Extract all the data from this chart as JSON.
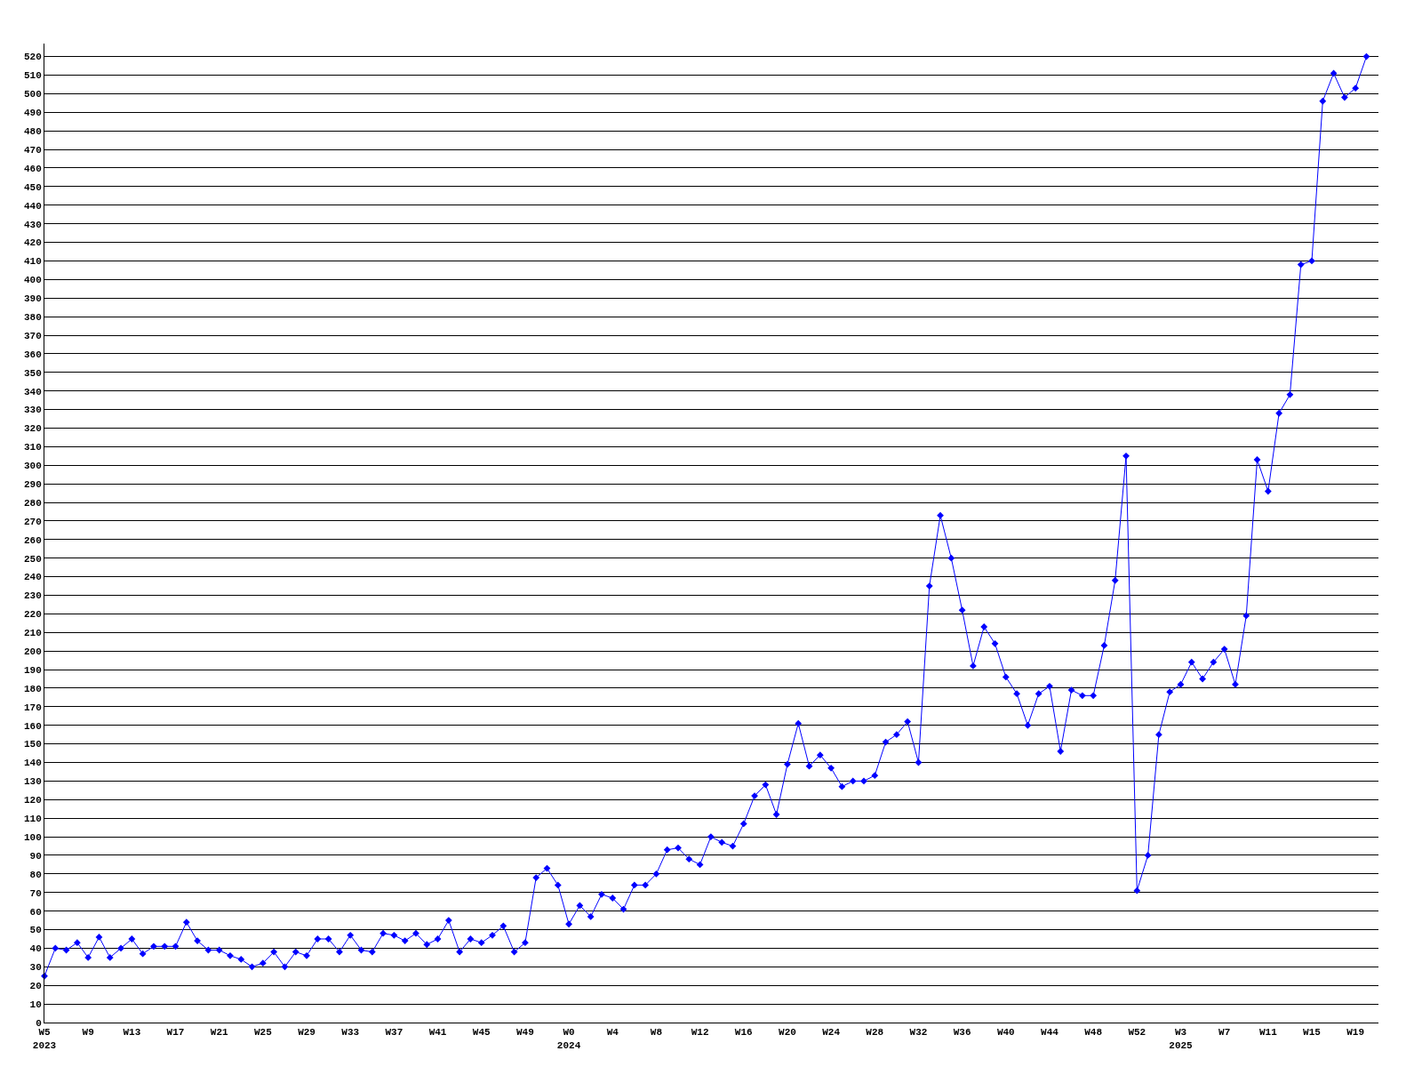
{
  "chart_data": {
    "type": "line",
    "categories": [
      "W5\n2023",
      null,
      null,
      null,
      "W9",
      null,
      null,
      null,
      "W13",
      null,
      null,
      null,
      "W17",
      null,
      null,
      null,
      "W21",
      null,
      null,
      null,
      "W25",
      null,
      null,
      null,
      "W29",
      null,
      null,
      null,
      "W33",
      null,
      null,
      null,
      "W37",
      null,
      null,
      null,
      "W41",
      null,
      null,
      null,
      "W45",
      null,
      null,
      null,
      "W49",
      null,
      null,
      null,
      "W0\n2024",
      null,
      null,
      null,
      "W4",
      null,
      null,
      null,
      "W8",
      null,
      null,
      null,
      "W12",
      null,
      null,
      null,
      "W16",
      null,
      null,
      null,
      "W20",
      null,
      null,
      null,
      "W24",
      null,
      null,
      null,
      "W28",
      null,
      null,
      null,
      "W32",
      null,
      null,
      null,
      "W36",
      null,
      null,
      null,
      "W40",
      null,
      null,
      null,
      "W44",
      null,
      null,
      null,
      "W48",
      null,
      null,
      null,
      "W52",
      null,
      null,
      null,
      "W3\n2025",
      null,
      null,
      null,
      "W7",
      null,
      null,
      null,
      "W11",
      null,
      null,
      null,
      "W15",
      null,
      null,
      null,
      "W19",
      null
    ],
    "values": [
      25,
      40,
      39,
      43,
      35,
      46,
      35,
      40,
      45,
      37,
      41,
      41,
      41,
      54,
      44,
      39,
      39,
      36,
      34,
      30,
      32,
      38,
      30,
      38,
      36,
      45,
      45,
      38,
      47,
      39,
      38,
      48,
      47,
      44,
      48,
      42,
      45,
      55,
      38,
      45,
      43,
      47,
      52,
      38,
      43,
      78,
      83,
      74,
      53,
      63,
      57,
      69,
      67,
      61,
      74,
      74,
      80,
      93,
      94,
      88,
      85,
      100,
      97,
      95,
      107,
      122,
      128,
      112,
      139,
      161,
      138,
      144,
      137,
      127,
      130,
      130,
      133,
      151,
      155,
      162,
      140,
      235,
      273,
      250,
      222,
      192,
      213,
      204,
      186,
      177,
      160,
      177,
      181,
      146,
      179,
      176,
      176,
      203,
      238,
      305,
      71,
      90,
      155,
      178,
      182,
      194,
      185,
      194,
      201,
      182,
      219,
      303,
      286,
      328,
      338,
      408,
      410,
      496,
      511,
      498,
      503,
      520
    ],
    "color": "#0000ff",
    "ylim": [
      0,
      527
    ],
    "yticks": [
      0,
      10,
      20,
      30,
      40,
      50,
      60,
      70,
      80,
      90,
      100,
      110,
      120,
      130,
      140,
      150,
      160,
      170,
      180,
      190,
      200,
      210,
      220,
      230,
      240,
      250,
      260,
      270,
      280,
      290,
      300,
      310,
      320,
      330,
      340,
      350,
      360,
      370,
      380,
      390,
      400,
      410,
      420,
      430,
      440,
      450,
      460,
      470,
      480,
      490,
      500,
      510,
      520
    ],
    "grid": "y",
    "marker": "diamond"
  }
}
